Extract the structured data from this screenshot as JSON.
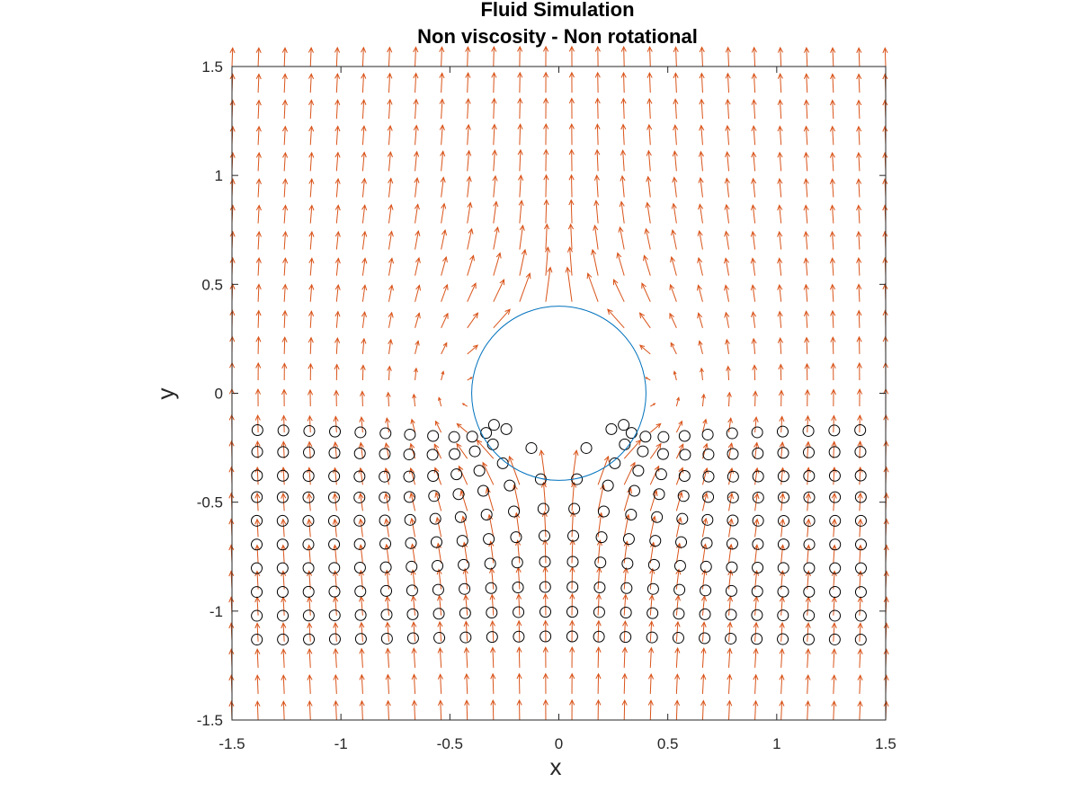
{
  "chart_data": {
    "type": "quiver-scatter",
    "title": "Fluid Simulation",
    "subtitle": "Non viscosity - Non rotational",
    "xlabel": "x",
    "ylabel": "y",
    "xlim": [
      -1.5,
      1.5
    ],
    "ylim": [
      -1.5,
      1.5
    ],
    "xticks": [
      -1.5,
      -1,
      -0.5,
      0,
      0.5,
      1,
      1.5
    ],
    "yticks": [
      -1.5,
      -1,
      -0.5,
      0,
      0.5,
      1,
      1.5
    ],
    "xtick_labels": [
      "-1.5",
      "-1",
      "-0.5",
      "0",
      "0.5",
      "1",
      "1.5"
    ],
    "ytick_labels": [
      "-1.5",
      "-1",
      "-0.5",
      "0",
      "0.5",
      "1",
      "1.5"
    ],
    "flow": {
      "type": "potential flow past cylinder",
      "free_stream_direction": "+y",
      "cylinder_center": [
        0,
        0
      ],
      "cylinder_radius": 0.4,
      "grid_start": -1.5,
      "grid_end": 1.5,
      "grid_count": 26,
      "arrow_scale": 0.085,
      "color": "#D95319"
    },
    "cylinder": {
      "center": [
        0,
        0
      ],
      "radius": 0.4,
      "color": "#0072BD"
    },
    "particles": {
      "x_start": -1.38,
      "x_step": 0.12,
      "x_count": 24,
      "y_initial": [
        -1.25,
        -1.14,
        -1.03,
        -0.92,
        -0.81,
        -0.7,
        -0.59,
        -0.49,
        -0.38,
        -0.28
      ],
      "advection_time": 0.12,
      "color": "#000000"
    }
  }
}
